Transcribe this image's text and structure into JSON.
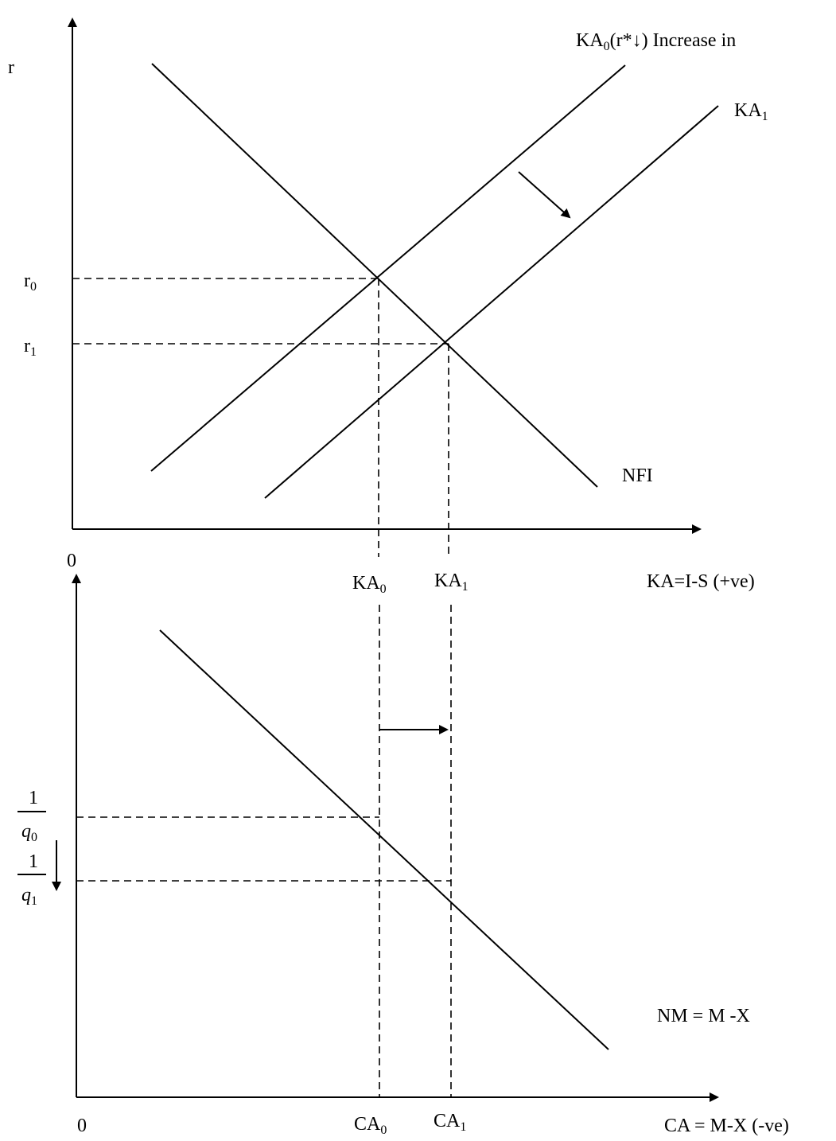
{
  "top_panel": {
    "y_axis_label": "r",
    "origin_label": "0",
    "x_axis_label": "KA=I-S (+ve)",
    "r0": {
      "main": "r",
      "sub": "0"
    },
    "r1": {
      "main": "r",
      "sub": "1"
    },
    "ka0_tick": {
      "main": "KA",
      "sub": "0"
    },
    "ka1_tick": {
      "main": "KA",
      "sub": "1"
    },
    "ka0_curve": {
      "main": "KA",
      "sub": "0",
      "suffix": "(r*↓) Increase in"
    },
    "ka1_curve": {
      "main": "KA",
      "sub": "1"
    },
    "nfi_label": "NFI"
  },
  "bottom_panel": {
    "origin_label": "0",
    "x_axis_label": "CA = M-X (-ve)",
    "ca0_tick": {
      "main": "CA",
      "sub": "0"
    },
    "ca1_tick": {
      "main": "CA",
      "sub": "1"
    },
    "q0_label": {
      "numerator": "1",
      "denominator": "q",
      "sub": "0"
    },
    "q1_label": {
      "numerator": "1",
      "denominator": "q",
      "sub": "1"
    },
    "nm_label": "NM = M -X"
  }
}
